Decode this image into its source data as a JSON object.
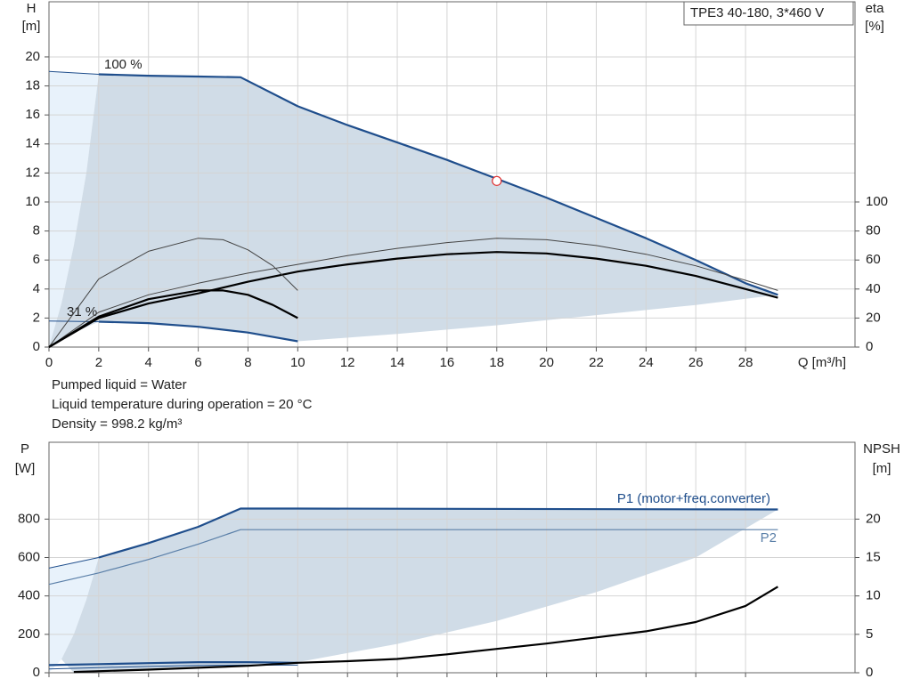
{
  "chart_data": [
    {
      "type": "line",
      "model": "TPE3 40-180, 3*460 V",
      "ylabel": "H",
      "yunit": "[m]",
      "y2label": "eta",
      "y2unit": "[%]",
      "xlabel": "Q [m³/h]",
      "xlim": [
        0,
        32.4
      ],
      "ylim": [
        0,
        23.8
      ],
      "y2lim": [
        0,
        238
      ],
      "grid": true,
      "xticks": [
        0,
        2,
        4,
        6,
        8,
        10,
        12,
        14,
        16,
        18,
        20,
        22,
        24,
        26,
        28
      ],
      "yticks": [
        0,
        2,
        4,
        6,
        8,
        10,
        12,
        14,
        16,
        18,
        20
      ],
      "y2ticks": [
        0,
        20,
        40,
        60,
        80,
        100
      ],
      "areas": [
        {
          "color": "#e8f2fb",
          "x": [
            0,
            0,
            2,
            1.5,
            1,
            0.5,
            0
          ],
          "y": [
            0,
            19,
            18.8,
            12,
            7,
            3,
            0
          ]
        },
        {
          "color": "#d0dce7",
          "x": [
            2,
            4,
            6,
            7.7,
            10,
            12,
            14,
            16,
            18,
            20,
            22,
            24,
            26,
            28,
            29.3,
            26,
            22,
            18,
            14,
            10,
            8,
            6,
            4,
            2,
            1,
            0,
            0.5,
            1,
            1.5,
            2
          ],
          "y": [
            18.8,
            18.7,
            18.65,
            18.6,
            16.6,
            15.3,
            14.1,
            12.9,
            11.6,
            10.3,
            8.9,
            7.5,
            6.0,
            4.4,
            3.6,
            2.9,
            2.2,
            1.5,
            0.9,
            0.4,
            1.0,
            1.4,
            1.65,
            1.75,
            1,
            0,
            3,
            7,
            12,
            18.8
          ]
        }
      ],
      "series": [
        {
          "color": "#1f4e8c",
          "width": 1,
          "x": [
            0,
            2
          ],
          "values": [
            19,
            18.8
          ]
        },
        {
          "name": "100 %",
          "color": "#1f4e8c",
          "width": 2.2,
          "x": [
            2,
            4,
            6,
            7.7,
            10,
            12,
            14,
            16,
            18,
            20,
            22,
            24,
            26,
            28,
            29.3
          ],
          "values": [
            18.8,
            18.7,
            18.65,
            18.6,
            16.6,
            15.3,
            14.1,
            12.9,
            11.6,
            10.3,
            8.9,
            7.5,
            6.0,
            4.4,
            3.6
          ]
        },
        {
          "color": "#1f4e8c",
          "width": 1,
          "x": [
            0,
            2
          ],
          "values": [
            1.8,
            1.75
          ]
        },
        {
          "name": "31 %",
          "color": "#1f4e8c",
          "width": 2.2,
          "x": [
            2,
            4,
            6,
            8,
            10
          ],
          "values": [
            1.75,
            1.65,
            1.4,
            1.0,
            0.4
          ]
        },
        {
          "color": "#444444",
          "width": 1,
          "axis": "y2",
          "x": [
            0,
            2,
            4,
            6,
            8,
            10,
            12,
            14,
            16,
            18,
            20,
            22,
            24,
            26,
            28,
            29.3
          ],
          "values": [
            0,
            24,
            36,
            44,
            51,
            57,
            63,
            68,
            72,
            75,
            74,
            70,
            64,
            56,
            46,
            39
          ]
        },
        {
          "color": "#000000",
          "width": 2.2,
          "axis": "y2",
          "x": [
            0,
            2,
            4,
            6,
            8,
            10,
            12,
            14,
            16,
            18,
            20,
            22,
            24,
            26,
            28,
            29.3
          ],
          "values": [
            0,
            20,
            30,
            37,
            45,
            52,
            57,
            61,
            64,
            65.5,
            64.5,
            61,
            56,
            49,
            40,
            34
          ]
        },
        {
          "color": "#444444",
          "width": 1,
          "axis": "y2",
          "x": [
            0,
            2,
            4,
            6,
            7,
            8,
            9,
            10
          ],
          "values": [
            0,
            47,
            66,
            75,
            74,
            67,
            56,
            39
          ]
        },
        {
          "color": "#000000",
          "width": 2.2,
          "axis": "y2",
          "x": [
            0,
            2,
            4,
            6,
            7,
            8,
            9,
            10
          ],
          "values": [
            0,
            21,
            33,
            39,
            39,
            36,
            29,
            20
          ]
        },
        {
          "color": "#e03030",
          "marker": true,
          "x": [
            18
          ],
          "values": [
            11.45
          ]
        }
      ],
      "notes": [
        "Pumped liquid = Water",
        "Liquid temperature during operation = 20 °C",
        "Density = 998.2 kg/m³"
      ]
    },
    {
      "type": "line",
      "ylabel": "P",
      "yunit": "[W]",
      "y2label": "NPSH",
      "y2unit": "[m]",
      "xlim": [
        0,
        32.4
      ],
      "ylim": [
        0,
        1200
      ],
      "y2lim": [
        0,
        30
      ],
      "grid": true,
      "yticks": [
        0,
        200,
        400,
        600,
        800
      ],
      "y2ticks": [
        0,
        5,
        10,
        15,
        20
      ],
      "areas": [
        {
          "color": "#e8f2fb",
          "x": [
            0,
            0,
            2,
            1.5,
            1,
            0.5,
            0
          ],
          "y": [
            0,
            545,
            600,
            380,
            200,
            70,
            0
          ]
        },
        {
          "color": "#d0dce7",
          "x": [
            2,
            4,
            6,
            7.7,
            10,
            29.3,
            26,
            22,
            18,
            14,
            10,
            1,
            0.5,
            1,
            1.5,
            2
          ],
          "y": [
            600,
            675,
            760,
            855,
            855,
            850,
            600,
            420,
            270,
            150,
            55,
            0,
            70,
            200,
            380,
            600
          ]
        }
      ],
      "series": [
        {
          "color": "#1f4e8c",
          "width": 1,
          "x": [
            0,
            2
          ],
          "values": [
            545,
            600
          ]
        },
        {
          "name": "P1 (motor+freq.converter)",
          "color": "#1f4e8c",
          "width": 2.2,
          "x": [
            2,
            4,
            6,
            7.7,
            10,
            29.3
          ],
          "values": [
            600,
            675,
            760,
            855,
            855,
            850
          ]
        },
        {
          "name": "P2",
          "color": "#5a7fa8",
          "width": 1.2,
          "x": [
            0,
            2,
            4,
            6,
            7.7,
            29.3
          ],
          "values": [
            460,
            520,
            590,
            670,
            745,
            745
          ]
        },
        {
          "color": "#1f4e8c",
          "width": 2.2,
          "x": [
            0,
            2,
            4,
            6,
            8,
            10
          ],
          "values": [
            40,
            45,
            50,
            55,
            55,
            52
          ]
        },
        {
          "color": "#1f4e8c",
          "width": 1,
          "x": [
            0,
            2,
            4,
            6,
            8,
            10
          ],
          "values": [
            20,
            27,
            33,
            38,
            40,
            40
          ]
        },
        {
          "color": "#000000",
          "width": 2.2,
          "axis": "y2",
          "x": [
            1,
            4,
            8,
            10,
            12,
            14,
            16,
            18,
            20,
            22,
            24,
            26,
            28,
            29.3
          ],
          "values": [
            0.1,
            0.4,
            0.9,
            1.3,
            1.5,
            1.8,
            2.4,
            3.1,
            3.8,
            4.6,
            5.4,
            6.6,
            8.7,
            11.2
          ]
        }
      ]
    }
  ]
}
